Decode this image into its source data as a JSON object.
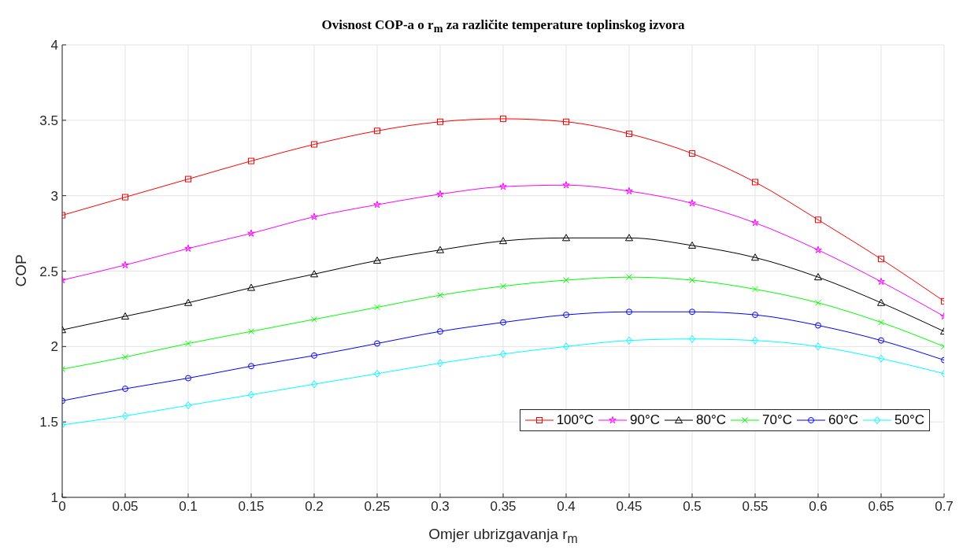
{
  "chart_data": {
    "type": "line",
    "title": "Ovisnost COP-a o r$_{m}$ za različite temperature toplinskog izvora",
    "xlabel": "Omjer ubrizgavanja r$_{m}$",
    "ylabel": "COP",
    "x": [
      0,
      0.05,
      0.1,
      0.15,
      0.2,
      0.25,
      0.3,
      0.35,
      0.4,
      0.45,
      0.5,
      0.55,
      0.6,
      0.65,
      0.7
    ],
    "xlim": [
      0,
      0.7
    ],
    "xticks": [
      0,
      0.05,
      0.1,
      0.15,
      0.2,
      0.25,
      0.3,
      0.35,
      0.4,
      0.45,
      0.5,
      0.55,
      0.6,
      0.65,
      0.7
    ],
    "ylim": [
      1,
      4
    ],
    "yticks": [
      1,
      1.5,
      2,
      2.5,
      3,
      3.5,
      4
    ],
    "grid": true,
    "legend": "bottom right",
    "line_style": "solid",
    "series": [
      {
        "name": "100°C",
        "color": "#ff0000",
        "marker": "square",
        "values": [
          2.87,
          2.99,
          3.11,
          3.23,
          3.34,
          3.43,
          3.49,
          3.51,
          3.49,
          3.41,
          3.28,
          3.09,
          2.84,
          2.58,
          2.3
        ]
      },
      {
        "name": "90°C",
        "color": "#ff00ff",
        "marker": "star",
        "values": [
          2.44,
          2.54,
          2.65,
          2.75,
          2.86,
          2.94,
          3.01,
          3.06,
          3.07,
          3.03,
          2.95,
          2.82,
          2.64,
          2.43,
          2.2
        ]
      },
      {
        "name": "80°C",
        "color": "#000000",
        "marker": "triangle",
        "values": [
          2.11,
          2.2,
          2.29,
          2.39,
          2.48,
          2.57,
          2.64,
          2.7,
          2.72,
          2.72,
          2.67,
          2.59,
          2.46,
          2.29,
          2.1
        ]
      },
      {
        "name": "70°C",
        "color": "#00ff00",
        "marker": "cross",
        "values": [
          1.85,
          1.93,
          2.02,
          2.1,
          2.18,
          2.26,
          2.34,
          2.4,
          2.44,
          2.46,
          2.44,
          2.38,
          2.29,
          2.16,
          2.0
        ]
      },
      {
        "name": "60°C",
        "color": "#0000ff",
        "marker": "circle",
        "values": [
          1.64,
          1.72,
          1.79,
          1.87,
          1.94,
          2.02,
          2.1,
          2.16,
          2.21,
          2.23,
          2.23,
          2.21,
          2.14,
          2.04,
          1.91
        ]
      },
      {
        "name": "50°C",
        "color": "#00ffff",
        "marker": "diamond",
        "values": [
          1.48,
          1.54,
          1.61,
          1.68,
          1.75,
          1.82,
          1.89,
          1.95,
          2.0,
          2.04,
          2.05,
          2.04,
          2.0,
          1.92,
          1.82
        ]
      }
    ]
  }
}
